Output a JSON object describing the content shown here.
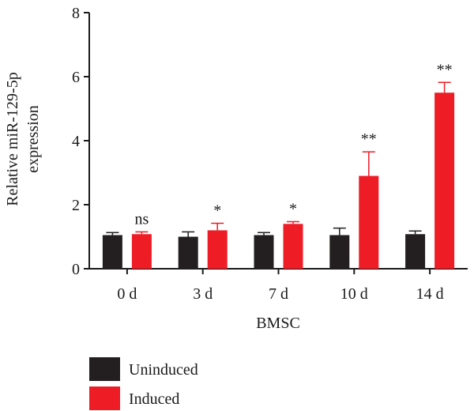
{
  "chart_data": {
    "type": "bar",
    "categories": [
      "0 d",
      "3 d",
      "7 d",
      "10 d",
      "14 d"
    ],
    "series": [
      {
        "name": "Uninduced",
        "color": "#231f20",
        "values": [
          1.05,
          1.0,
          1.05,
          1.05,
          1.08
        ],
        "errors": [
          0.08,
          0.15,
          0.08,
          0.22,
          0.1
        ]
      },
      {
        "name": "Induced",
        "color": "#ee1c25",
        "values": [
          1.08,
          1.2,
          1.4,
          2.9,
          5.5
        ],
        "errors": [
          0.07,
          0.22,
          0.07,
          0.75,
          0.32
        ]
      }
    ],
    "significance": [
      "ns",
      "*",
      "*",
      "**",
      "**"
    ],
    "xlabel": "BMSC",
    "ylabel": [
      "Relative miR-129-5p",
      "expression"
    ],
    "ylim": [
      0,
      8
    ],
    "yticks": [
      "0",
      "2",
      "4",
      "6",
      "8"
    ],
    "grid": false,
    "legend_position": "bottom-left"
  }
}
